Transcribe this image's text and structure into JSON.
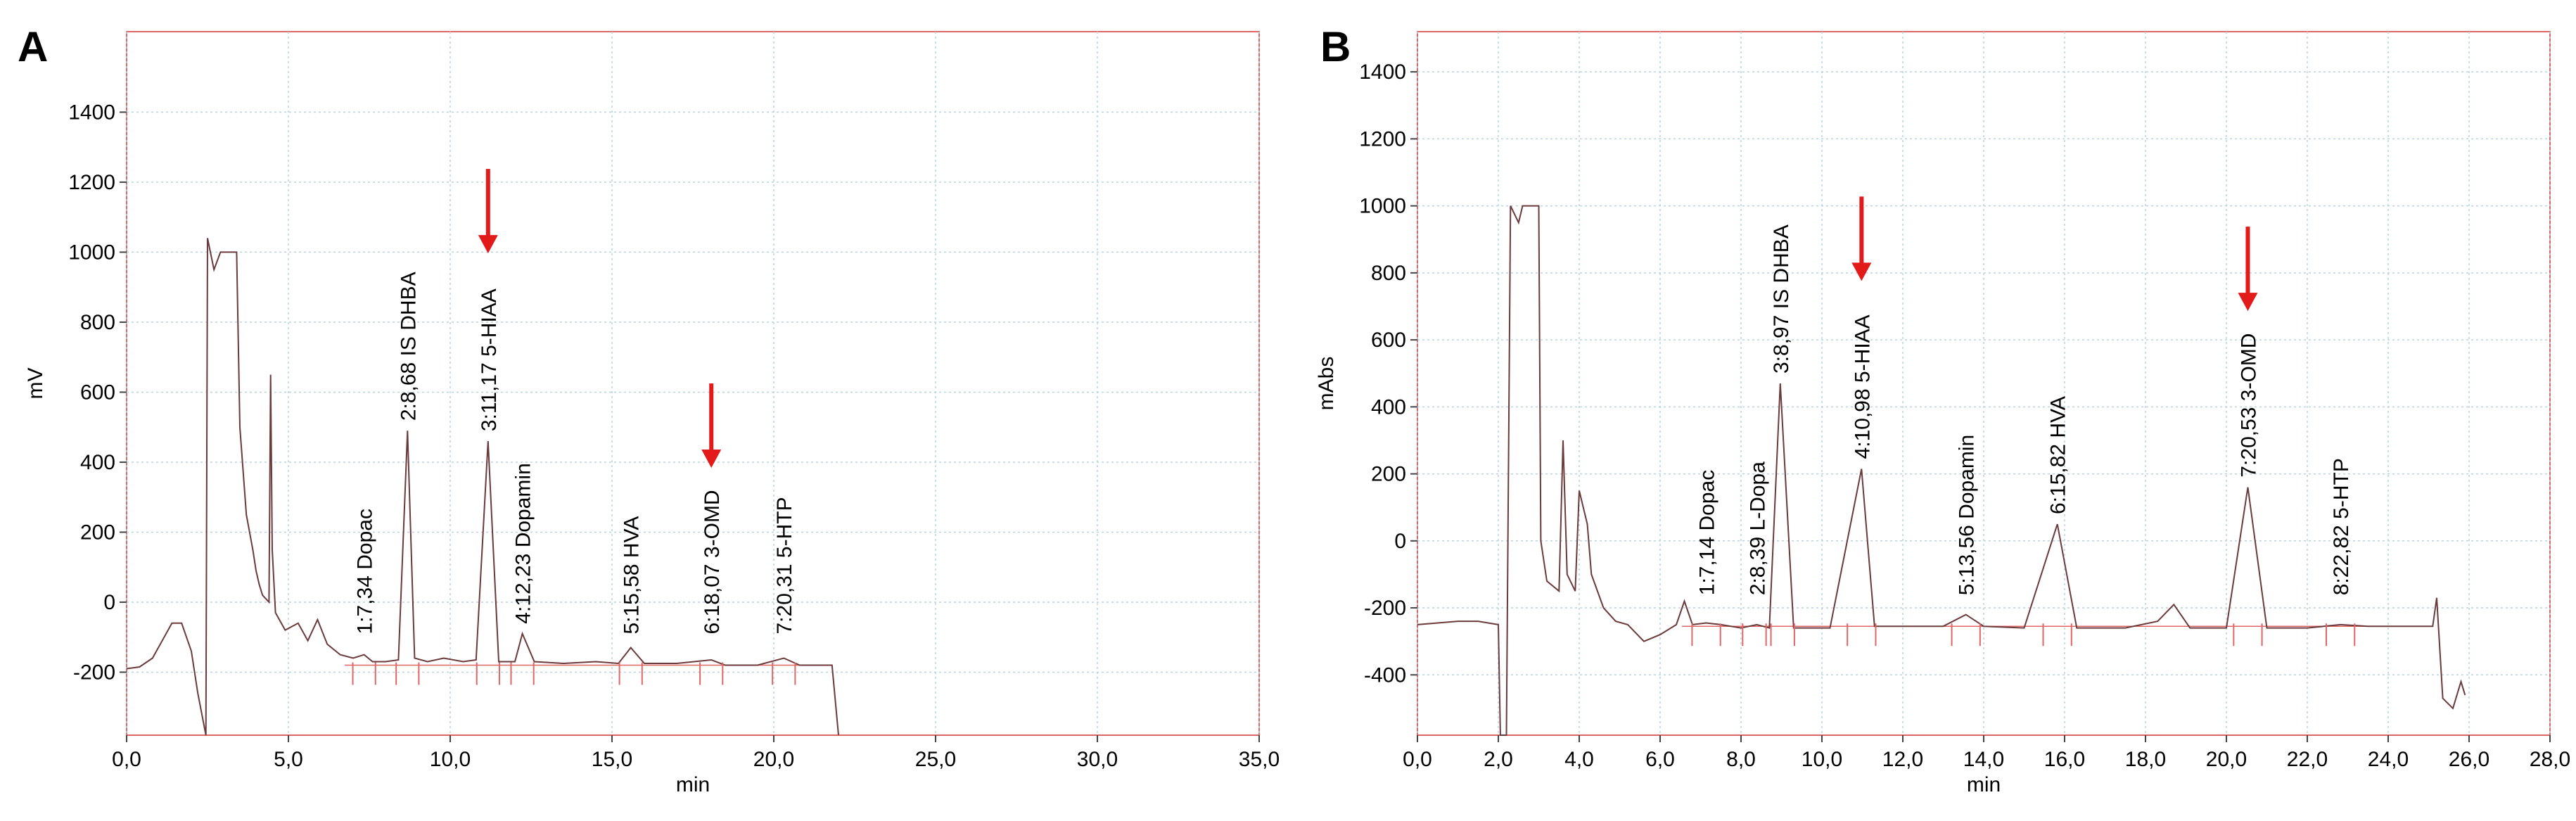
{
  "panels": [
    {
      "letter": "A",
      "ylabel": "mV",
      "xlabel": "min",
      "xticks": [
        "0,0",
        "5,0",
        "10,0",
        "15,0",
        "20,0",
        "25,0",
        "30,0",
        "35,0"
      ],
      "yticks": [
        "-200",
        "0",
        "200",
        "400",
        "600",
        "800",
        "1000",
        "1200",
        "1400"
      ]
    },
    {
      "letter": "B",
      "ylabel": "mAbs",
      "xlabel": "min",
      "xticks": [
        "0,0",
        "2,0",
        "4,0",
        "6,0",
        "8,0",
        "10,0",
        "12,0",
        "14,0",
        "16,0",
        "18,0",
        "20,0",
        "22,0",
        "24,0",
        "26,0",
        "28,0"
      ],
      "yticks": [
        "-400",
        "-200",
        "0",
        "200",
        "400",
        "600",
        "800",
        "1000",
        "1200",
        "1400"
      ]
    }
  ],
  "chart_data": [
    {
      "type": "line",
      "title": "",
      "xlabel": "min",
      "ylabel": "mV",
      "xlim": [
        0,
        35
      ],
      "ylim": [
        -380,
        1630
      ],
      "grid": true,
      "peaks": [
        {
          "label": "1:7,34 Dopac",
          "x": 7.34,
          "y": -150
        },
        {
          "label": "2:8,68 IS DHBA",
          "x": 8.68,
          "y": 490
        },
        {
          "label": "3:11,17 5-HIAA",
          "x": 11.17,
          "y": 460
        },
        {
          "label": "4:12,23 Dopamin",
          "x": 12.23,
          "y": -90
        },
        {
          "label": "5:15,58 HVA",
          "x": 15.58,
          "y": -130
        },
        {
          "label": "6:18,07 3-OMD",
          "x": 18.07,
          "y": -165
        },
        {
          "label": "7:20,31 5-HTP",
          "x": 20.31,
          "y": -160
        }
      ],
      "highlighted": [
        "3:11,17 5-HIAA",
        "6:18,07 3-OMD"
      ],
      "series": [
        {
          "values": [
            [
              0,
              -190
            ],
            [
              0.4,
              -185
            ],
            [
              0.8,
              -160
            ],
            [
              1.1,
              -110
            ],
            [
              1.4,
              -60
            ],
            [
              1.7,
              -60
            ],
            [
              2.0,
              -140
            ],
            [
              2.2,
              -260
            ],
            [
              2.45,
              -380
            ],
            [
              2.5,
              1040
            ],
            [
              2.7,
              950
            ],
            [
              2.9,
              1000
            ],
            [
              3.4,
              1000
            ],
            [
              3.5,
              500
            ],
            [
              3.7,
              250
            ],
            [
              3.9,
              150
            ],
            [
              4.0,
              90
            ],
            [
              4.1,
              50
            ],
            [
              4.2,
              20
            ],
            [
              4.4,
              0
            ],
            [
              4.45,
              650
            ],
            [
              4.5,
              150
            ],
            [
              4.6,
              -30
            ],
            [
              4.9,
              -80
            ],
            [
              5.3,
              -60
            ],
            [
              5.6,
              -110
            ],
            [
              5.9,
              -50
            ],
            [
              6.2,
              -120
            ],
            [
              6.6,
              -150
            ],
            [
              7.0,
              -160
            ],
            [
              7.34,
              -150
            ],
            [
              7.6,
              -170
            ],
            [
              8.0,
              -170
            ],
            [
              8.4,
              -165
            ],
            [
              8.68,
              490
            ],
            [
              8.9,
              -160
            ],
            [
              9.3,
              -170
            ],
            [
              9.8,
              -160
            ],
            [
              10.4,
              -170
            ],
            [
              10.8,
              -165
            ],
            [
              11.17,
              460
            ],
            [
              11.5,
              -170
            ],
            [
              12.0,
              -170
            ],
            [
              12.23,
              -90
            ],
            [
              12.6,
              -170
            ],
            [
              13.5,
              -175
            ],
            [
              14.5,
              -170
            ],
            [
              15.2,
              -175
            ],
            [
              15.58,
              -130
            ],
            [
              16.0,
              -175
            ],
            [
              17.0,
              -175
            ],
            [
              18.07,
              -165
            ],
            [
              18.5,
              -180
            ],
            [
              19.5,
              -180
            ],
            [
              20.31,
              -160
            ],
            [
              20.8,
              -180
            ],
            [
              21.8,
              -180
            ],
            [
              22.0,
              -380
            ]
          ]
        }
      ]
    },
    {
      "type": "line",
      "title": "",
      "xlabel": "min",
      "ylabel": "mAbs",
      "xlim": [
        0,
        28
      ],
      "ylim": [
        -580,
        1520
      ],
      "grid": true,
      "peaks": [
        {
          "label": "1:7,14 Dopac",
          "x": 7.14,
          "y": -245
        },
        {
          "label": "2:8,39 L-Dopa",
          "x": 8.39,
          "y": -250
        },
        {
          "label": "3:8,97 IS DHBA",
          "x": 8.97,
          "y": 470
        },
        {
          "label": "4:10,98 5-HIAA",
          "x": 10.98,
          "y": 215
        },
        {
          "label": "5:13,56 Dopamin",
          "x": 13.56,
          "y": -220
        },
        {
          "label": "6:15,82 HVA",
          "x": 15.82,
          "y": 50
        },
        {
          "label": "7:20,53 3-OMD",
          "x": 20.53,
          "y": 160
        },
        {
          "label": "8:22,82 5-HTP",
          "x": 22.82,
          "y": -250
        }
      ],
      "highlighted": [
        "4:10,98 5-HIAA",
        "7:20,53 3-OMD"
      ],
      "series": [
        {
          "values": [
            [
              0,
              -250
            ],
            [
              0.5,
              -245
            ],
            [
              1.0,
              -240
            ],
            [
              1.5,
              -240
            ],
            [
              2.0,
              -250
            ],
            [
              2.05,
              -580
            ],
            [
              2.2,
              -580
            ],
            [
              2.3,
              1000
            ],
            [
              2.5,
              950
            ],
            [
              2.6,
              1000
            ],
            [
              3.0,
              1000
            ],
            [
              3.05,
              0
            ],
            [
              3.2,
              -120
            ],
            [
              3.5,
              -150
            ],
            [
              3.6,
              300
            ],
            [
              3.7,
              -100
            ],
            [
              3.9,
              -150
            ],
            [
              4.0,
              150
            ],
            [
              4.2,
              50
            ],
            [
              4.3,
              -100
            ],
            [
              4.6,
              -200
            ],
            [
              4.9,
              -240
            ],
            [
              5.2,
              -250
            ],
            [
              5.6,
              -300
            ],
            [
              6.0,
              -280
            ],
            [
              6.4,
              -250
            ],
            [
              6.6,
              -180
            ],
            [
              6.8,
              -250
            ],
            [
              7.14,
              -245
            ],
            [
              7.5,
              -250
            ],
            [
              8.0,
              -260
            ],
            [
              8.39,
              -250
            ],
            [
              8.7,
              -260
            ],
            [
              8.97,
              470
            ],
            [
              9.3,
              -260
            ],
            [
              10.2,
              -260
            ],
            [
              10.98,
              215
            ],
            [
              11.3,
              -255
            ],
            [
              12.2,
              -255
            ],
            [
              13.0,
              -255
            ],
            [
              13.56,
              -220
            ],
            [
              14.0,
              -255
            ],
            [
              15.0,
              -260
            ],
            [
              15.82,
              50
            ],
            [
              16.3,
              -260
            ],
            [
              17.5,
              -260
            ],
            [
              18.3,
              -240
            ],
            [
              18.7,
              -190
            ],
            [
              19.1,
              -260
            ],
            [
              20.0,
              -260
            ],
            [
              20.53,
              160
            ],
            [
              21.0,
              -260
            ],
            [
              22.0,
              -260
            ],
            [
              22.82,
              -250
            ],
            [
              23.5,
              -255
            ],
            [
              24.5,
              -255
            ],
            [
              25.1,
              -255
            ],
            [
              25.2,
              -170
            ],
            [
              25.35,
              -470
            ],
            [
              25.6,
              -500
            ],
            [
              25.8,
              -420
            ],
            [
              25.9,
              -460
            ]
          ]
        }
      ]
    }
  ]
}
